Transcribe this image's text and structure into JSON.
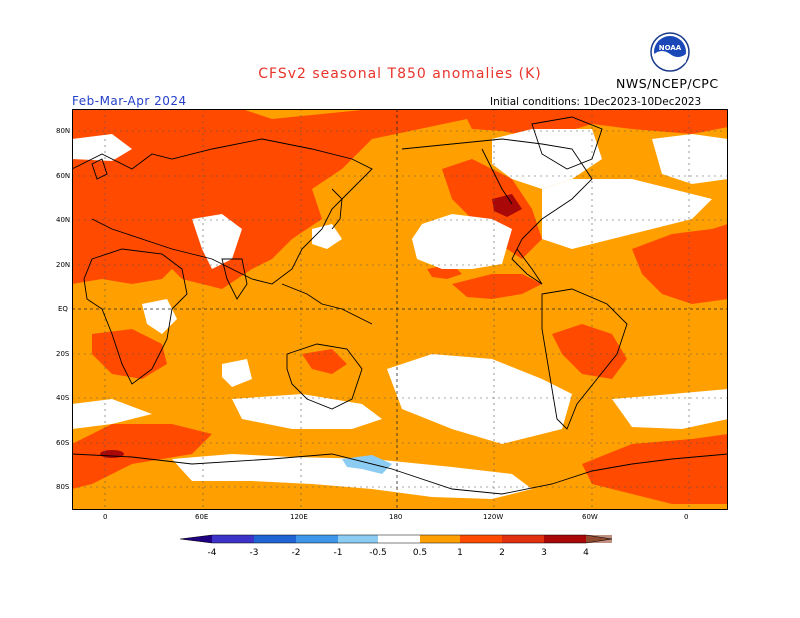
{
  "title": "CFSv2 seasonal T850 anomalies (K)",
  "season": "Feb-Mar-Apr 2024",
  "initial_conditions": "Initial conditions: 1Dec2023-10Dec2023",
  "organization": "NWS/NCEP/CPC",
  "logo_text": "NOAA",
  "lat_labels": [
    "80N",
    "60N",
    "40N",
    "20N",
    "EQ",
    "20S",
    "40S",
    "60S",
    "80S"
  ],
  "lon_labels": [
    "0",
    "60E",
    "120E",
    "180",
    "120W",
    "60W",
    "0"
  ],
  "colorbar": {
    "labels": [
      "-4",
      "-3",
      "-2",
      "-1",
      "-0.5",
      "0.5",
      "1",
      "2",
      "3",
      "4"
    ],
    "colors": [
      "#1f0080",
      "#3d33c9",
      "#1e64d2",
      "#3d96e9",
      "#8ccbf2",
      "#ffffff",
      "#ffa000",
      "#ff4a00",
      "#e03010",
      "#a80808",
      "#c09080",
      "#8f4a30"
    ]
  },
  "palette": {
    "land_sea_outline": "#000000",
    "weak_positive": "#ffa000",
    "moderate_positive": "#ff4a00",
    "strong_positive": "#a80808",
    "weak_negative": "#8ccbf2",
    "neutral": "#ffffff"
  }
}
